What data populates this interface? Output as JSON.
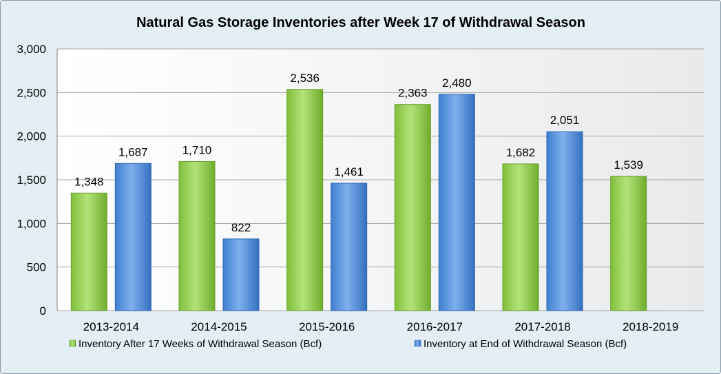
{
  "chart_data": {
    "type": "bar",
    "title": "Natural Gas Storage Inventories after Week 17 of Withdrawal Season",
    "xlabel": "",
    "ylabel": "",
    "categories": [
      "2013-2014",
      "2014-2015",
      "2015-2016",
      "2016-2017",
      "2017-2018",
      "2018-2019"
    ],
    "series": [
      {
        "name": "Inventory After 17 Weeks of Withdrawal Season (Bcf)",
        "values": [
          1348,
          1710,
          2536,
          2363,
          1682,
          1539
        ],
        "color": "#92d050"
      },
      {
        "name": "Inventory at End of Withdrawal Season (Bcf)",
        "values": [
          1687,
          822,
          1461,
          2480,
          2051,
          null
        ],
        "color": "#4f8fde"
      }
    ],
    "ylim": [
      0,
      3000
    ],
    "yticks": [
      0,
      500,
      1000,
      1500,
      2000,
      2500,
      3000
    ],
    "ytick_labels": [
      "0",
      "500",
      "1,000",
      "1,500",
      "2,000",
      "2,500",
      "3,000"
    ],
    "data_labels": [
      [
        "1,348",
        "1,710",
        "2,536",
        "2,363",
        "1,682",
        "1,539"
      ],
      [
        "1,687",
        "822",
        "1,461",
        "2,480",
        "2,051",
        ""
      ]
    ],
    "grid": true,
    "legend_position": "bottom"
  }
}
